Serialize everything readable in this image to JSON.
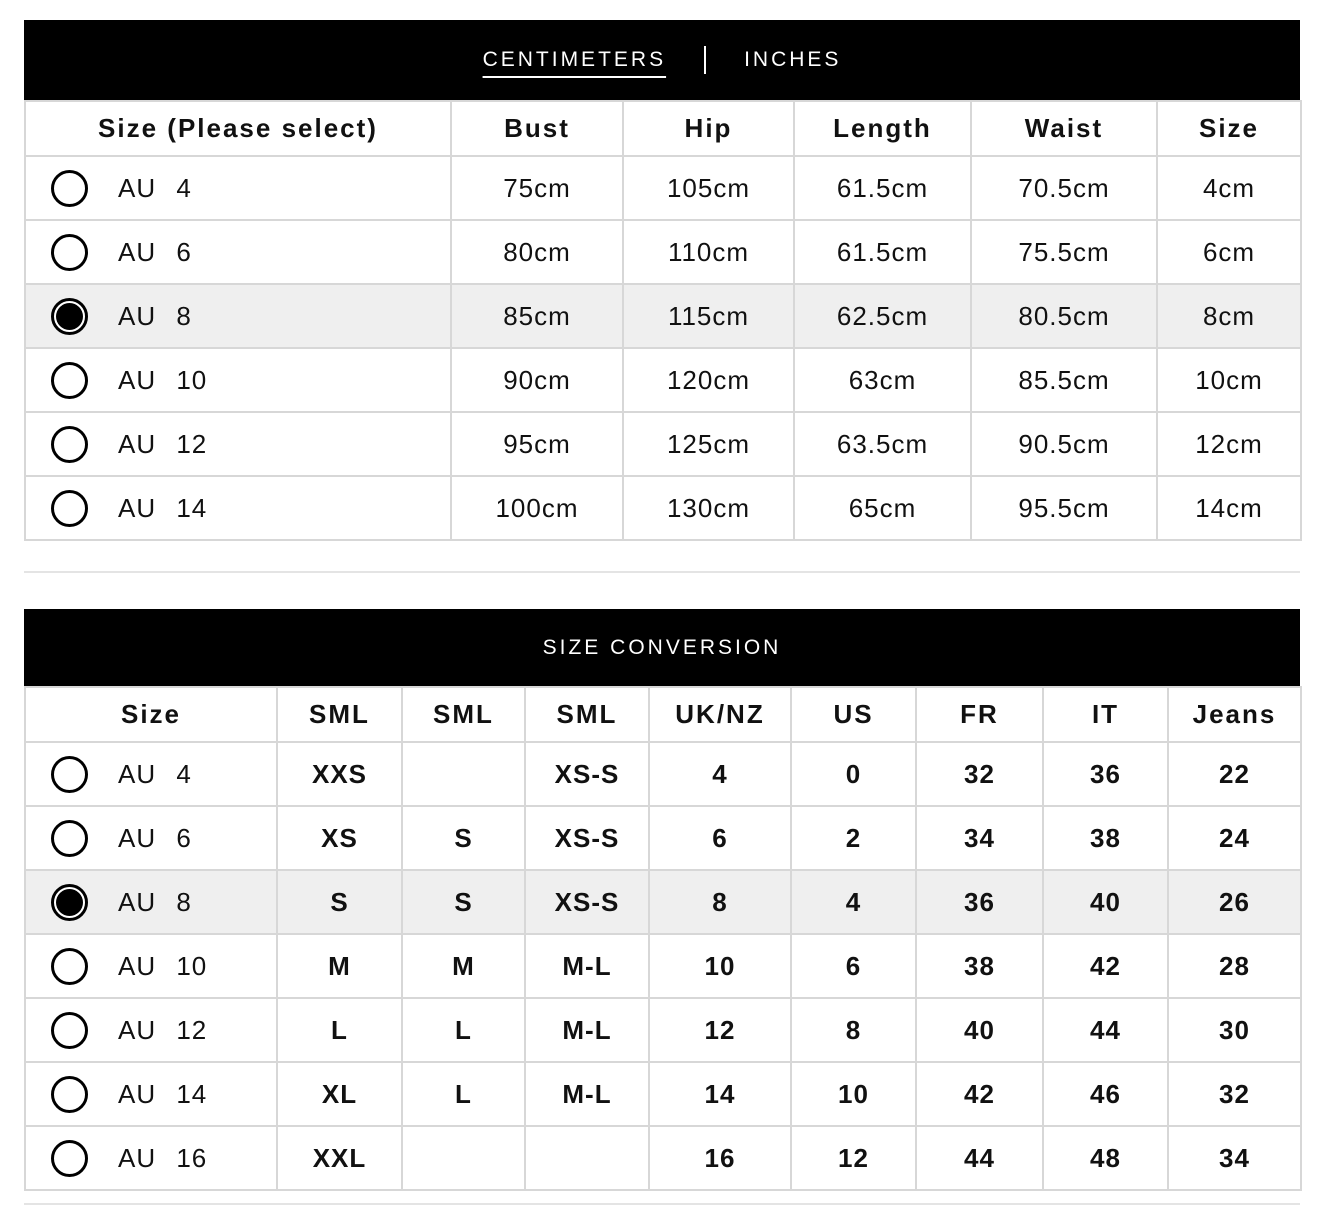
{
  "colors": {
    "header_bg": "#000000",
    "header_text": "#ffffff",
    "selected_row_bg": "#efefef",
    "border": "#d7d7d7"
  },
  "measurement_table": {
    "unit_tabs": {
      "centimeters": "CENTIMETERS",
      "inches": "INCHES",
      "active": "centimeters"
    },
    "columns": [
      "Size (Please select)",
      "Bust",
      "Hip",
      "Length",
      "Waist",
      "Size"
    ],
    "rows": [
      {
        "label": "AU 4",
        "selected": false,
        "values": [
          "75cm",
          "105cm",
          "61.5cm",
          "70.5cm",
          "4cm"
        ]
      },
      {
        "label": "AU 6",
        "selected": false,
        "values": [
          "80cm",
          "110cm",
          "61.5cm",
          "75.5cm",
          "6cm"
        ]
      },
      {
        "label": "AU 8",
        "selected": true,
        "values": [
          "85cm",
          "115cm",
          "62.5cm",
          "80.5cm",
          "8cm"
        ]
      },
      {
        "label": "AU 10",
        "selected": false,
        "values": [
          "90cm",
          "120cm",
          "63cm",
          "85.5cm",
          "10cm"
        ]
      },
      {
        "label": "AU 12",
        "selected": false,
        "values": [
          "95cm",
          "125cm",
          "63.5cm",
          "90.5cm",
          "12cm"
        ]
      },
      {
        "label": "AU 14",
        "selected": false,
        "values": [
          "100cm",
          "130cm",
          "65cm",
          "95.5cm",
          "14cm"
        ]
      }
    ]
  },
  "conversion_table": {
    "title": "SIZE CONVERSION",
    "columns": [
      "Size",
      "SML",
      "SML",
      "SML",
      "UK/NZ",
      "US",
      "FR",
      "IT",
      "Jeans"
    ],
    "rows": [
      {
        "label": "AU 4",
        "selected": false,
        "values": [
          "XXS",
          "",
          "XS-S",
          "4",
          "0",
          "32",
          "36",
          "22"
        ]
      },
      {
        "label": "AU 6",
        "selected": false,
        "values": [
          "XS",
          "S",
          "XS-S",
          "6",
          "2",
          "34",
          "38",
          "24"
        ]
      },
      {
        "label": "AU 8",
        "selected": true,
        "values": [
          "S",
          "S",
          "XS-S",
          "8",
          "4",
          "36",
          "40",
          "26"
        ]
      },
      {
        "label": "AU 10",
        "selected": false,
        "values": [
          "M",
          "M",
          "M-L",
          "10",
          "6",
          "38",
          "42",
          "28"
        ]
      },
      {
        "label": "AU 12",
        "selected": false,
        "values": [
          "L",
          "L",
          "M-L",
          "12",
          "8",
          "40",
          "44",
          "30"
        ]
      },
      {
        "label": "AU 14",
        "selected": false,
        "values": [
          "XL",
          "L",
          "M-L",
          "14",
          "10",
          "42",
          "46",
          "32"
        ]
      },
      {
        "label": "AU 16",
        "selected": false,
        "values": [
          "XXL",
          "",
          "",
          "16",
          "12",
          "44",
          "48",
          "34"
        ]
      }
    ]
  }
}
